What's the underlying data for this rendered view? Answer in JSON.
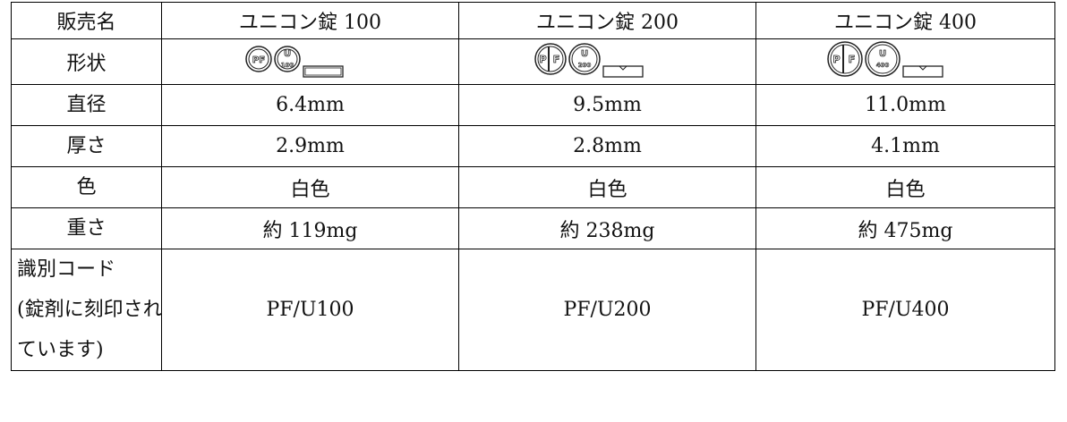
{
  "table": {
    "header": [
      "販売名",
      "ユニコン錠 100",
      "ユニコン錠 200",
      "ユニコン錠 400"
    ],
    "shape": {
      "label": "形状",
      "cells": [
        {
          "imprint": "PF",
          "code": "U",
          "strength": "100",
          "scored": false
        },
        {
          "imprint_left": "P",
          "imprint_right": "F",
          "code": "U",
          "strength": "200",
          "scored": true
        },
        {
          "imprint_left": "P",
          "imprint_right": "F",
          "code": "U",
          "strength": "400",
          "scored": true
        }
      ]
    },
    "rows": [
      {
        "label": [
          "直径"
        ],
        "cells": [
          "6.4mm",
          "9.5mm",
          "11.0mm"
        ]
      },
      {
        "label": [
          "厚さ"
        ],
        "cells": [
          "2.9mm",
          "2.8mm",
          "4.1mm"
        ]
      },
      {
        "label": [
          "色"
        ],
        "cells": [
          "白色",
          "白色",
          "白色"
        ]
      },
      {
        "label": [
          "重さ"
        ],
        "cells": [
          "約 119mg",
          "約 238mg",
          "約 475mg"
        ]
      },
      {
        "label": [
          "識別コード",
          "(錠剤に刻印され",
          "ています)"
        ],
        "cells": [
          "PF/U100",
          "PF/U200",
          "PF/U400"
        ]
      }
    ]
  }
}
